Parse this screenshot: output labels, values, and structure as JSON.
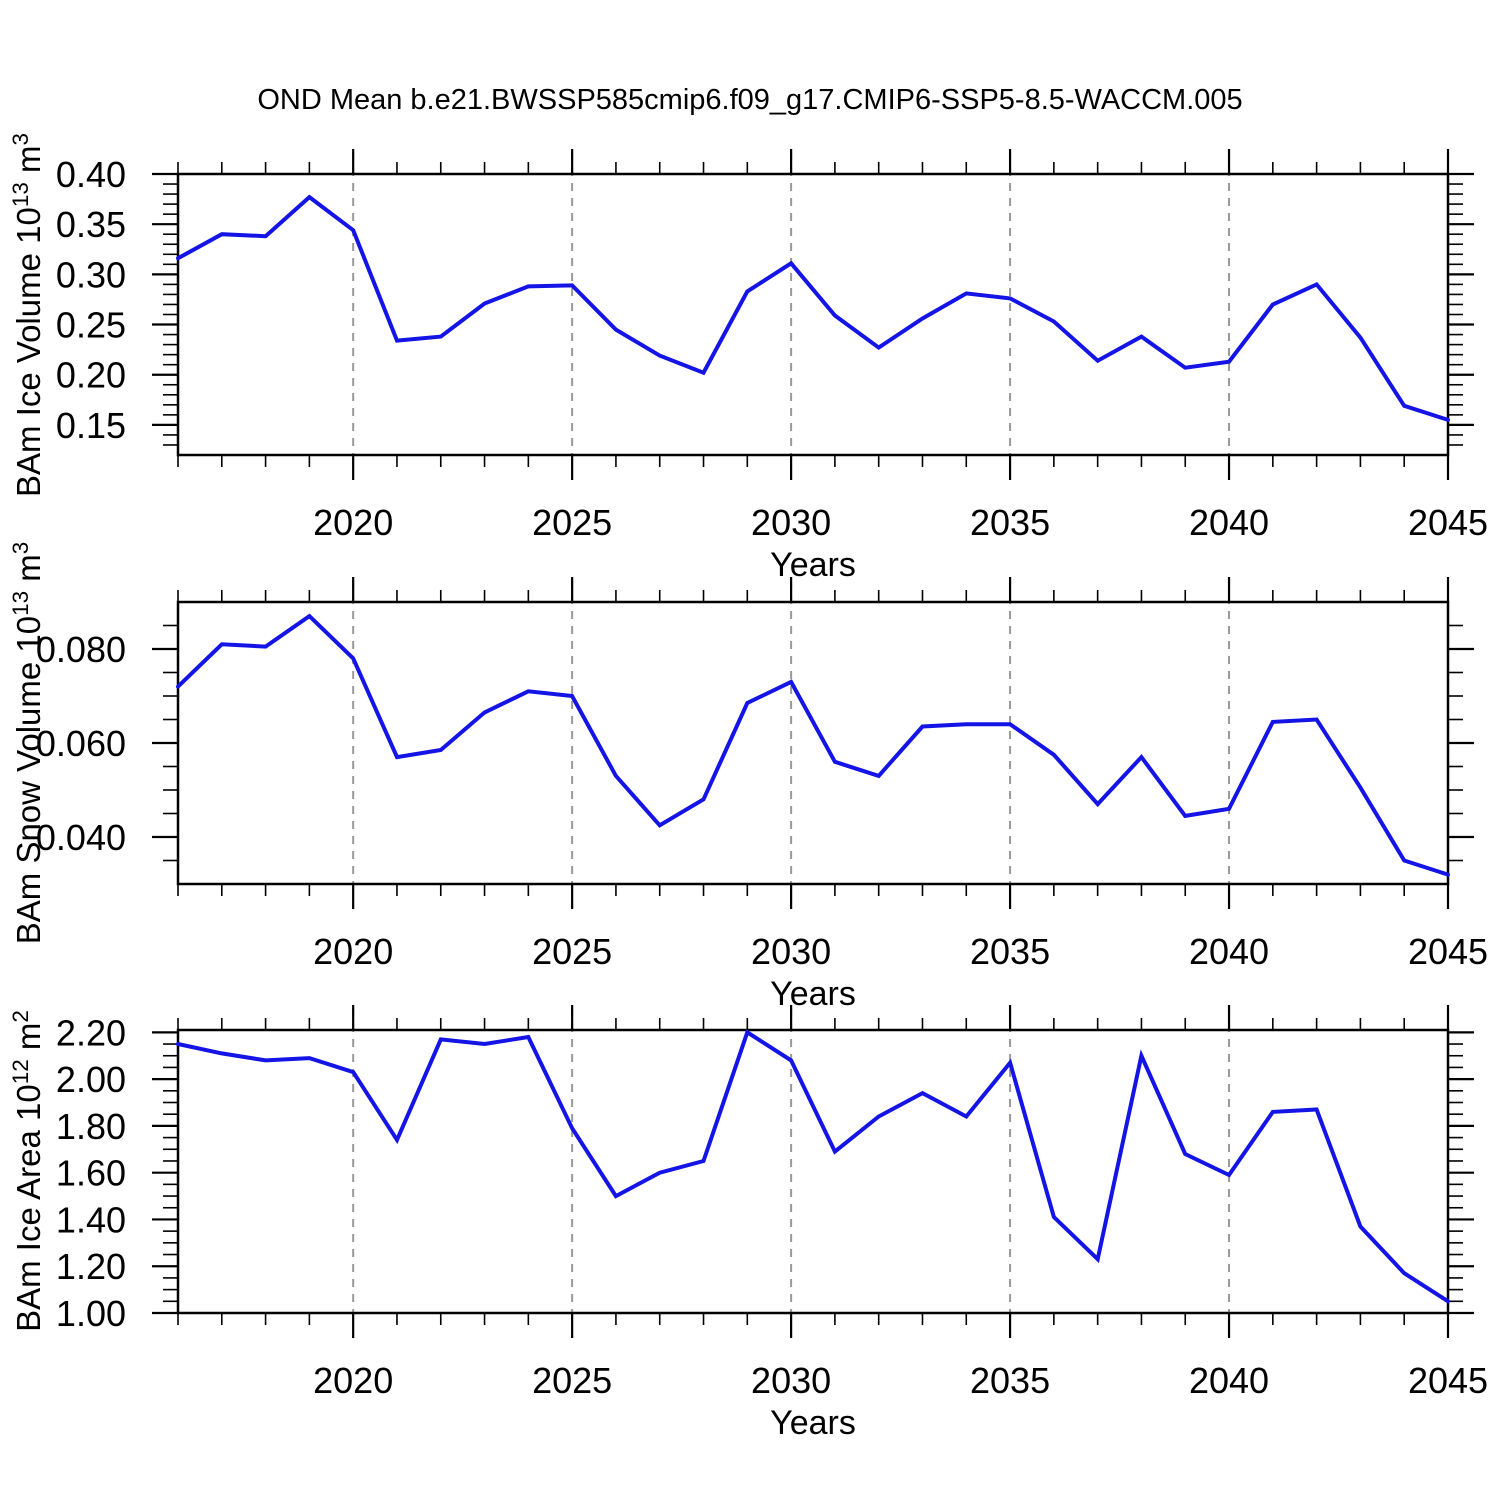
{
  "title": "OND Mean b.e21.BWSSP585cmip6.f09_g17.CMIP6-SSP5-8.5-WACCM.005",
  "style": {
    "line_color": "#1414e6",
    "grid_color": "#999999",
    "axis_color": "#000000",
    "background": "#ffffff"
  },
  "chart_data": [
    {
      "type": "line",
      "name": "ice-volume",
      "title": "",
      "xlabel": "Years",
      "ylabel": "BAm Ice Volume 10¹³ m³",
      "ylabel_rich": {
        "prefix": "BAm Ice Volume 10",
        "exponent": "13",
        "unit": " m",
        "unit_exponent": "3"
      },
      "x": [
        2016,
        2017,
        2018,
        2019,
        2020,
        2021,
        2022,
        2023,
        2024,
        2025,
        2026,
        2027,
        2028,
        2029,
        2030,
        2031,
        2032,
        2033,
        2034,
        2035,
        2036,
        2037,
        2038,
        2039,
        2040,
        2041,
        2042,
        2043,
        2044,
        2045
      ],
      "values": [
        0.316,
        0.34,
        0.338,
        0.377,
        0.344,
        0.234,
        0.238,
        0.271,
        0.288,
        0.289,
        0.245,
        0.219,
        0.202,
        0.283,
        0.311,
        0.259,
        0.227,
        0.256,
        0.281,
        0.276,
        0.253,
        0.214,
        0.238,
        0.207,
        0.213,
        0.27,
        0.29,
        0.237,
        0.169,
        0.155
      ],
      "xlim": [
        2016,
        2045
      ],
      "ylim": [
        0.12,
        0.4
      ],
      "ytick_major": [
        0.15,
        0.2,
        0.25,
        0.3,
        0.35,
        0.4
      ],
      "ytick_labels": [
        "0.15",
        "0.20",
        "0.25",
        "0.30",
        "0.35",
        "0.40"
      ],
      "ytick_minor_step": 0.01,
      "xtick_labeled": [
        2020,
        2025,
        2030,
        2035,
        2040,
        2045
      ],
      "xtick_minor_step": 1,
      "grid_years": [
        2020,
        2025,
        2030,
        2035,
        2040
      ],
      "grid_on": true,
      "legend": "none"
    },
    {
      "type": "line",
      "name": "snow-volume",
      "title": "",
      "xlabel": "Years",
      "ylabel": "BAm Snow Volume 10¹³ m³",
      "ylabel_rich": {
        "prefix": "BAm Snow Volume 10",
        "exponent": "13",
        "unit": " m",
        "unit_exponent": "3"
      },
      "x": [
        2016,
        2017,
        2018,
        2019,
        2020,
        2021,
        2022,
        2023,
        2024,
        2025,
        2026,
        2027,
        2028,
        2029,
        2030,
        2031,
        2032,
        2033,
        2034,
        2035,
        2036,
        2037,
        2038,
        2039,
        2040,
        2041,
        2042,
        2043,
        2044,
        2045
      ],
      "values": [
        0.072,
        0.081,
        0.0805,
        0.087,
        0.078,
        0.057,
        0.0585,
        0.0665,
        0.071,
        0.07,
        0.053,
        0.0425,
        0.048,
        0.0685,
        0.073,
        0.056,
        0.053,
        0.0635,
        0.064,
        0.064,
        0.0575,
        0.047,
        0.057,
        0.0445,
        0.046,
        0.0645,
        0.065,
        0.0505,
        0.035,
        0.032
      ],
      "xlim": [
        2016,
        2045
      ],
      "ylim": [
        0.03,
        0.09
      ],
      "ytick_major": [
        0.04,
        0.06,
        0.08
      ],
      "ytick_labels": [
        "0.040",
        "0.060",
        "0.080"
      ],
      "ytick_minor_step": 0.005,
      "xtick_labeled": [
        2020,
        2025,
        2030,
        2035,
        2040,
        2045
      ],
      "xtick_minor_step": 1,
      "grid_years": [
        2020,
        2025,
        2030,
        2035,
        2040
      ],
      "grid_on": true,
      "legend": "none"
    },
    {
      "type": "line",
      "name": "ice-area",
      "title": "",
      "xlabel": "Years",
      "ylabel": "BAm Ice Area 10¹² m²",
      "ylabel_rich": {
        "prefix": "BAm Ice Area 10",
        "exponent": "12",
        "unit": " m",
        "unit_exponent": "2"
      },
      "x": [
        2016,
        2017,
        2018,
        2019,
        2020,
        2021,
        2022,
        2023,
        2024,
        2025,
        2026,
        2027,
        2028,
        2029,
        2030,
        2031,
        2032,
        2033,
        2034,
        2035,
        2036,
        2037,
        2038,
        2039,
        2040,
        2041,
        2042,
        2043,
        2044,
        2045
      ],
      "values": [
        2.15,
        2.11,
        2.08,
        2.09,
        2.03,
        1.74,
        2.17,
        2.15,
        2.18,
        1.79,
        1.5,
        1.6,
        1.65,
        2.2,
        2.08,
        1.69,
        1.84,
        1.94,
        1.84,
        2.07,
        1.41,
        1.23,
        2.1,
        1.68,
        1.59,
        1.86,
        1.87,
        1.37,
        1.17,
        1.05
      ],
      "xlim": [
        2016,
        2045
      ],
      "ylim": [
        1.0,
        2.21
      ],
      "ytick_major": [
        1.0,
        1.2,
        1.4,
        1.6,
        1.8,
        2.0,
        2.2
      ],
      "ytick_labels": [
        "1.00",
        "1.20",
        "1.40",
        "1.60",
        "1.80",
        "2.00",
        "2.20"
      ],
      "ytick_minor_step": 0.05,
      "xtick_labeled": [
        2020,
        2025,
        2030,
        2035,
        2040,
        2045
      ],
      "xtick_minor_step": 1,
      "grid_years": [
        2020,
        2025,
        2030,
        2035,
        2040
      ],
      "grid_on": true,
      "legend": "none"
    }
  ]
}
